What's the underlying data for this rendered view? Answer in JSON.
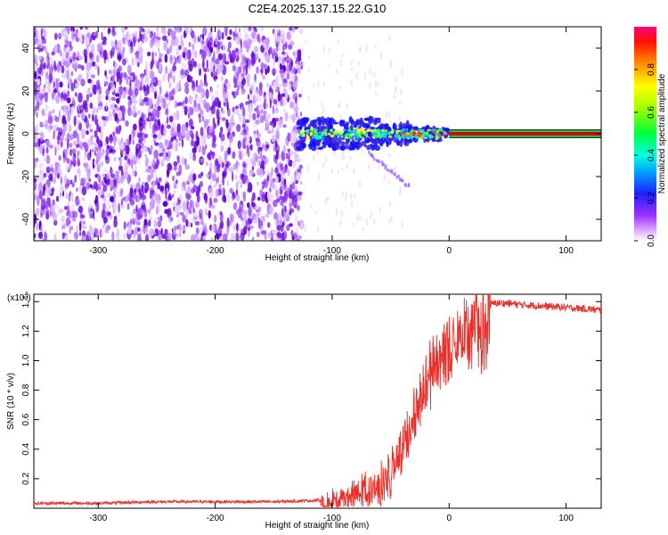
{
  "title": "C2E4.2025.137.15.22.G10",
  "colors": {
    "snr_line": "#e8302a",
    "spec_noise": "#7a10e8",
    "spec_center": "#d4000f"
  },
  "colorbar": {
    "label": "Normalized spectral amplitude",
    "ticks": [
      "0.0",
      "0.2",
      "0.4",
      "0.6",
      "0.8"
    ],
    "tick_values": [
      0.0,
      0.2,
      0.4,
      0.6,
      0.8
    ],
    "range": [
      0,
      1
    ]
  },
  "chart_data": [
    {
      "type": "heatmap",
      "name": "spectrogram",
      "xlabel": "Height of straight line (km)",
      "ylabel": "Frequency (Hz)",
      "xlim": [
        -355,
        130
      ],
      "ylim": [
        -50,
        50
      ],
      "x_ticks": [
        -300,
        -200,
        -100,
        0,
        100
      ],
      "x_tick_labels": [
        "-300",
        "-200",
        "-100",
        "0",
        "100"
      ],
      "y_ticks": [
        -40,
        -20,
        0,
        20,
        40
      ],
      "y_tick_labels": [
        "-40",
        "-20",
        "0",
        "20",
        "40"
      ],
      "noise_region_x": [
        -355,
        -130
      ],
      "transition_region_x": [
        -130,
        0
      ],
      "tone_region_x": [
        0,
        130
      ],
      "tone_frequency": 0
    },
    {
      "type": "line",
      "name": "snr",
      "xlabel": "Height of straight line (km)",
      "ylabel": "SNR (10 * v/v)",
      "y_scale_label": "(x10^4)",
      "y_scale_base": "(x10",
      "y_scale_exp": "4",
      "y_scale_close": ")",
      "xlim": [
        -355,
        130
      ],
      "ylim": [
        0,
        1.45
      ],
      "x_ticks": [
        -300,
        -200,
        -100,
        0,
        100
      ],
      "x_tick_labels": [
        "-300",
        "-200",
        "-100",
        "0",
        "100"
      ],
      "y_ticks": [
        0.2,
        0.4,
        0.6,
        0.8,
        1.0,
        1.2,
        1.4
      ],
      "y_tick_labels": [
        "0.2",
        "0.4",
        "0.6",
        "0.8",
        "1.0",
        "1.2",
        "1.4"
      ],
      "series": [
        {
          "x": [
            -355,
            -300,
            -250,
            -200,
            -150,
            -110,
            -100,
            -90,
            -80,
            -70,
            -60,
            -50,
            -40,
            -30,
            -20,
            -10,
            0,
            10,
            20,
            30,
            40,
            50,
            60,
            80,
            100,
            120,
            130
          ],
          "values": [
            0.03,
            0.03,
            0.04,
            0.04,
            0.04,
            0.05,
            0.08,
            0.12,
            0.15,
            0.18,
            0.22,
            0.3,
            0.45,
            0.7,
            0.95,
            1.1,
            1.18,
            1.26,
            1.32,
            1.37,
            1.39,
            1.39,
            1.38,
            1.37,
            1.36,
            1.35,
            1.34
          ]
        }
      ]
    }
  ]
}
